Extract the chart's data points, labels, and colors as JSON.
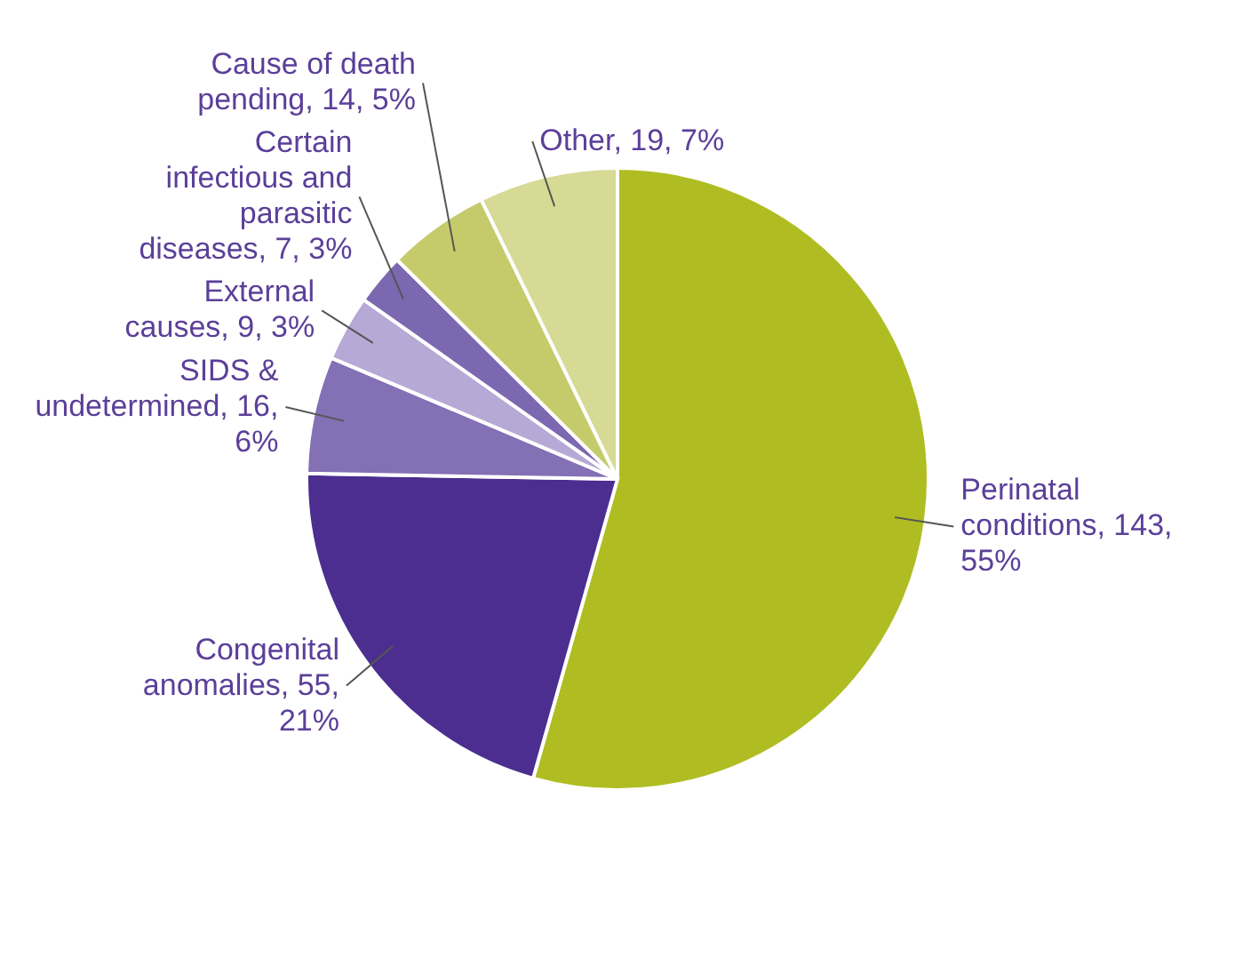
{
  "chart_data": {
    "type": "pie",
    "categories": [
      "Perinatal conditions",
      "Congenital anomalies",
      "SIDS & undetermined",
      "External causes",
      "Certain infectious and parasitic diseases",
      "Cause of death pending",
      "Other"
    ],
    "values": [
      143,
      55,
      16,
      9,
      7,
      14,
      19
    ],
    "value_labels": [
      "143, 55%",
      "55, 21%",
      "16, 6%",
      "9, 3%",
      "7, 3%",
      "14, 5%",
      "19, 7%"
    ],
    "colors": [
      "#afbd22",
      "#4b2e8f",
      "#8470b5",
      "#b6a9d6",
      "#7c68b0",
      "#c5cb6b",
      "#d6da94"
    ]
  }
}
